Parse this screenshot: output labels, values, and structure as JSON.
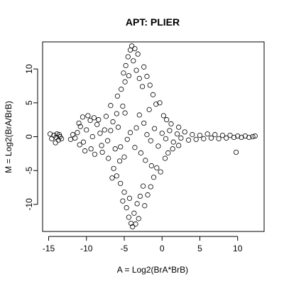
{
  "chart_data": {
    "type": "scatter",
    "title": "APT: PLIER",
    "xlabel": "A = Log2(BrA*BrB)",
    "ylabel": "M = Log2(BrA/BrB)",
    "xlim": [
      -15.8,
      13.5
    ],
    "ylim": [
      -14.0,
      14.0
    ],
    "x_ticks": [
      -15,
      -10,
      -5,
      0,
      5,
      10
    ],
    "y_ticks": [
      -10,
      -5,
      0,
      5,
      10
    ],
    "grid": false,
    "legend": "none",
    "marker": "open-circle",
    "point_color": "#000000",
    "note_points": "Representative points approximating the dense cloud of many thousands of observations.",
    "points": [
      [
        -14.8,
        0.4
      ],
      [
        -14.6,
        -0.3
      ],
      [
        -14.3,
        0.2
      ],
      [
        -14.1,
        -0.9
      ],
      [
        -13.9,
        0.4
      ],
      [
        -13.7,
        -0.5
      ],
      [
        -13.5,
        0.0
      ],
      [
        -13.3,
        -0.3
      ],
      [
        -13.6,
        0.3
      ],
      [
        -14.0,
        -0.1
      ],
      [
        -9.5,
        2.4
      ],
      [
        -10.8,
        1.5
      ],
      [
        -11.2,
        0.6
      ],
      [
        -11.5,
        -0.2
      ],
      [
        -10.9,
        -1.2
      ],
      [
        -10.2,
        -2.1
      ],
      [
        -9.8,
        3.1
      ],
      [
        -9.0,
        2.8
      ],
      [
        -8.6,
        1.8
      ],
      [
        -8.2,
        0.5
      ],
      [
        -8.9,
        -2.6
      ],
      [
        -9.4,
        -1.8
      ],
      [
        -11.8,
        0.3
      ],
      [
        -12.1,
        -0.4
      ],
      [
        -10.5,
        2.9
      ],
      [
        -8.0,
        -1.3
      ],
      [
        -7.6,
        1.0
      ],
      [
        -7.9,
        -2.3
      ],
      [
        -9.2,
        0.0
      ],
      [
        -10.0,
        1.0
      ],
      [
        -10.4,
        -0.8
      ],
      [
        -11.0,
        2.0
      ],
      [
        -8.4,
        2.5
      ],
      [
        -7.2,
        -0.6
      ],
      [
        -6.8,
        0.9
      ],
      [
        -6.5,
        2.2
      ],
      [
        -6.2,
        -1.8
      ],
      [
        -6.0,
        3.4
      ],
      [
        -5.6,
        -3.6
      ],
      [
        -5.2,
        4.5
      ],
      [
        -4.8,
        10.5
      ],
      [
        -4.5,
        11.8
      ],
      [
        -4.2,
        12.8
      ],
      [
        -3.8,
        11.2
      ],
      [
        -3.4,
        9.8
      ],
      [
        -3.0,
        8.6
      ],
      [
        -2.6,
        7.4
      ],
      [
        -4.9,
        8.1
      ],
      [
        -5.4,
        7.0
      ],
      [
        -5.9,
        6.0
      ],
      [
        -4.0,
        13.4
      ],
      [
        -3.6,
        13.0
      ],
      [
        -3.2,
        12.2
      ],
      [
        -2.4,
        10.3
      ],
      [
        -2.0,
        8.9
      ],
      [
        -1.6,
        7.6
      ],
      [
        -1.2,
        6.2
      ],
      [
        -0.8,
        4.8
      ],
      [
        -5.1,
        9.4
      ],
      [
        -4.4,
        9.0
      ],
      [
        -4.7,
        -10.5
      ],
      [
        -4.4,
        -11.9
      ],
      [
        -4.1,
        -12.8
      ],
      [
        -3.7,
        -11.3
      ],
      [
        -3.3,
        -9.9
      ],
      [
        -2.9,
        -8.8
      ],
      [
        -2.5,
        -7.3
      ],
      [
        -5.0,
        -8.2
      ],
      [
        -5.5,
        -6.9
      ],
      [
        -6.0,
        -5.8
      ],
      [
        -3.9,
        -13.3
      ],
      [
        -3.5,
        -12.9
      ],
      [
        -3.1,
        -12.1
      ],
      [
        -2.3,
        -10.2
      ],
      [
        -1.9,
        -8.6
      ],
      [
        -1.5,
        -7.4
      ],
      [
        -1.1,
        -6.0
      ],
      [
        -0.7,
        -4.6
      ],
      [
        -5.2,
        -9.5
      ],
      [
        -4.3,
        -9.1
      ],
      [
        -2.0,
        0.3
      ],
      [
        -1.5,
        -0.6
      ],
      [
        -1.0,
        1.2
      ],
      [
        -0.5,
        -1.4
      ],
      [
        0.0,
        0.5
      ],
      [
        0.5,
        -0.3
      ],
      [
        1.0,
        0.9
      ],
      [
        1.5,
        -0.8
      ],
      [
        2.0,
        0.4
      ],
      [
        2.5,
        -0.2
      ],
      [
        3.0,
        0.7
      ],
      [
        3.5,
        -0.5
      ],
      [
        4.0,
        0.3
      ],
      [
        4.5,
        -0.4
      ],
      [
        5.0,
        0.2
      ],
      [
        5.5,
        -0.3
      ],
      [
        6.0,
        0.4
      ],
      [
        6.5,
        -0.2
      ],
      [
        7.0,
        0.3
      ],
      [
        7.5,
        -0.3
      ],
      [
        8.0,
        0.2
      ],
      [
        8.5,
        -0.2
      ],
      [
        9.0,
        0.2
      ],
      [
        9.5,
        -0.1
      ],
      [
        10.0,
        0.1
      ],
      [
        10.5,
        -0.1
      ],
      [
        11.0,
        0.1
      ],
      [
        11.5,
        -0.1
      ],
      [
        12.0,
        0.0
      ],
      [
        12.3,
        0.1
      ],
      [
        0.2,
        3.1
      ],
      [
        0.6,
        2.5
      ],
      [
        1.2,
        1.9
      ],
      [
        0.4,
        -3.2
      ],
      [
        0.8,
        -2.4
      ],
      [
        1.4,
        -1.8
      ],
      [
        -0.3,
        5.0
      ],
      [
        -0.2,
        -5.2
      ],
      [
        2.2,
        1.4
      ],
      [
        2.2,
        -1.3
      ],
      [
        -3.0,
        3.2
      ],
      [
        -2.4,
        2.0
      ],
      [
        -2.8,
        -2.4
      ],
      [
        -3.6,
        -1.6
      ],
      [
        -4.2,
        0.6
      ],
      [
        -4.6,
        -0.4
      ],
      [
        -3.4,
        1.3
      ],
      [
        -2.2,
        -3.5
      ],
      [
        -1.7,
        4.0
      ],
      [
        -1.4,
        -4.3
      ],
      [
        -6.8,
        4.6
      ],
      [
        -6.4,
        -4.7
      ],
      [
        -7.4,
        3.0
      ],
      [
        -7.1,
        -3.2
      ],
      [
        -5.8,
        1.4
      ],
      [
        -5.5,
        -1.5
      ],
      [
        -4.9,
        3.5
      ],
      [
        -5.0,
        -3.0
      ],
      [
        9.8,
        -2.3
      ],
      [
        -6.6,
        -6.1
      ]
    ]
  }
}
